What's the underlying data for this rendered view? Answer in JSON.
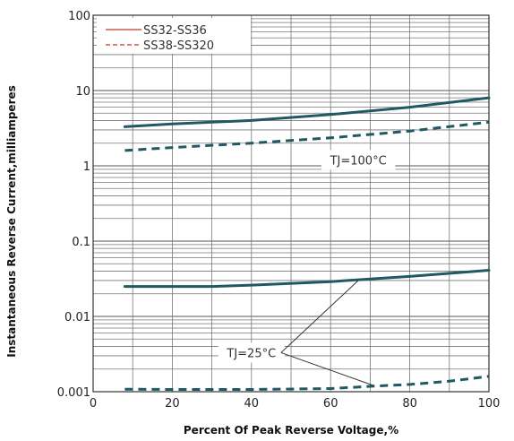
{
  "chart_data": {
    "type": "line",
    "xlabel": "Percent Of Peak Reverse Voltage,%",
    "ylabel": "Instantaneous Reverse Current,milliamperes",
    "xlim": [
      0,
      100
    ],
    "ylim": [
      0.001,
      100
    ],
    "yscale": "log",
    "x_ticks": [
      "0",
      "20",
      "40",
      "60",
      "80",
      "100"
    ],
    "y_ticks": [
      "0.001",
      "0.01",
      "0.1",
      "1",
      "10",
      "100"
    ],
    "grid": true,
    "legend_position": "top-left",
    "legend": [
      {
        "label": "SS32-SS36",
        "style": "solid",
        "color": "#c0392b"
      },
      {
        "label": "SS38-SS320",
        "style": "dashed",
        "color": "#c0392b"
      }
    ],
    "series": [
      {
        "group": "TJ=100°C",
        "style": "solid",
        "color": "#1f5a63",
        "x": [
          8,
          20,
          40,
          60,
          80,
          100
        ],
        "y": [
          3.3,
          3.6,
          4.0,
          4.8,
          6.0,
          8.0
        ]
      },
      {
        "group": "TJ=100°C",
        "style": "dashed",
        "color": "#1f5a63",
        "x": [
          8,
          20,
          40,
          60,
          80,
          100
        ],
        "y": [
          1.6,
          1.75,
          2.0,
          2.35,
          2.9,
          3.8
        ]
      },
      {
        "group": "TJ=25°C",
        "style": "solid",
        "color": "#1f5a63",
        "x": [
          8,
          20,
          30,
          40,
          60,
          80,
          100
        ],
        "y": [
          0.025,
          0.025,
          0.025,
          0.026,
          0.029,
          0.034,
          0.041
        ]
      },
      {
        "group": "TJ=25°C",
        "style": "dashed",
        "color": "#1f5a63",
        "x": [
          8,
          20,
          40,
          60,
          70,
          80,
          90,
          100
        ],
        "y": [
          0.00108,
          0.00107,
          0.00107,
          0.0011,
          0.00118,
          0.00125,
          0.00138,
          0.0016
        ]
      }
    ],
    "annotations": [
      {
        "text": "TJ=100°C",
        "x": 67,
        "y": 1.2
      },
      {
        "text": "TJ=25°C",
        "x": 40,
        "y": 0.0033,
        "points_to": [
          [
            67,
            0.03
          ],
          [
            71,
            0.0012
          ]
        ]
      }
    ]
  }
}
